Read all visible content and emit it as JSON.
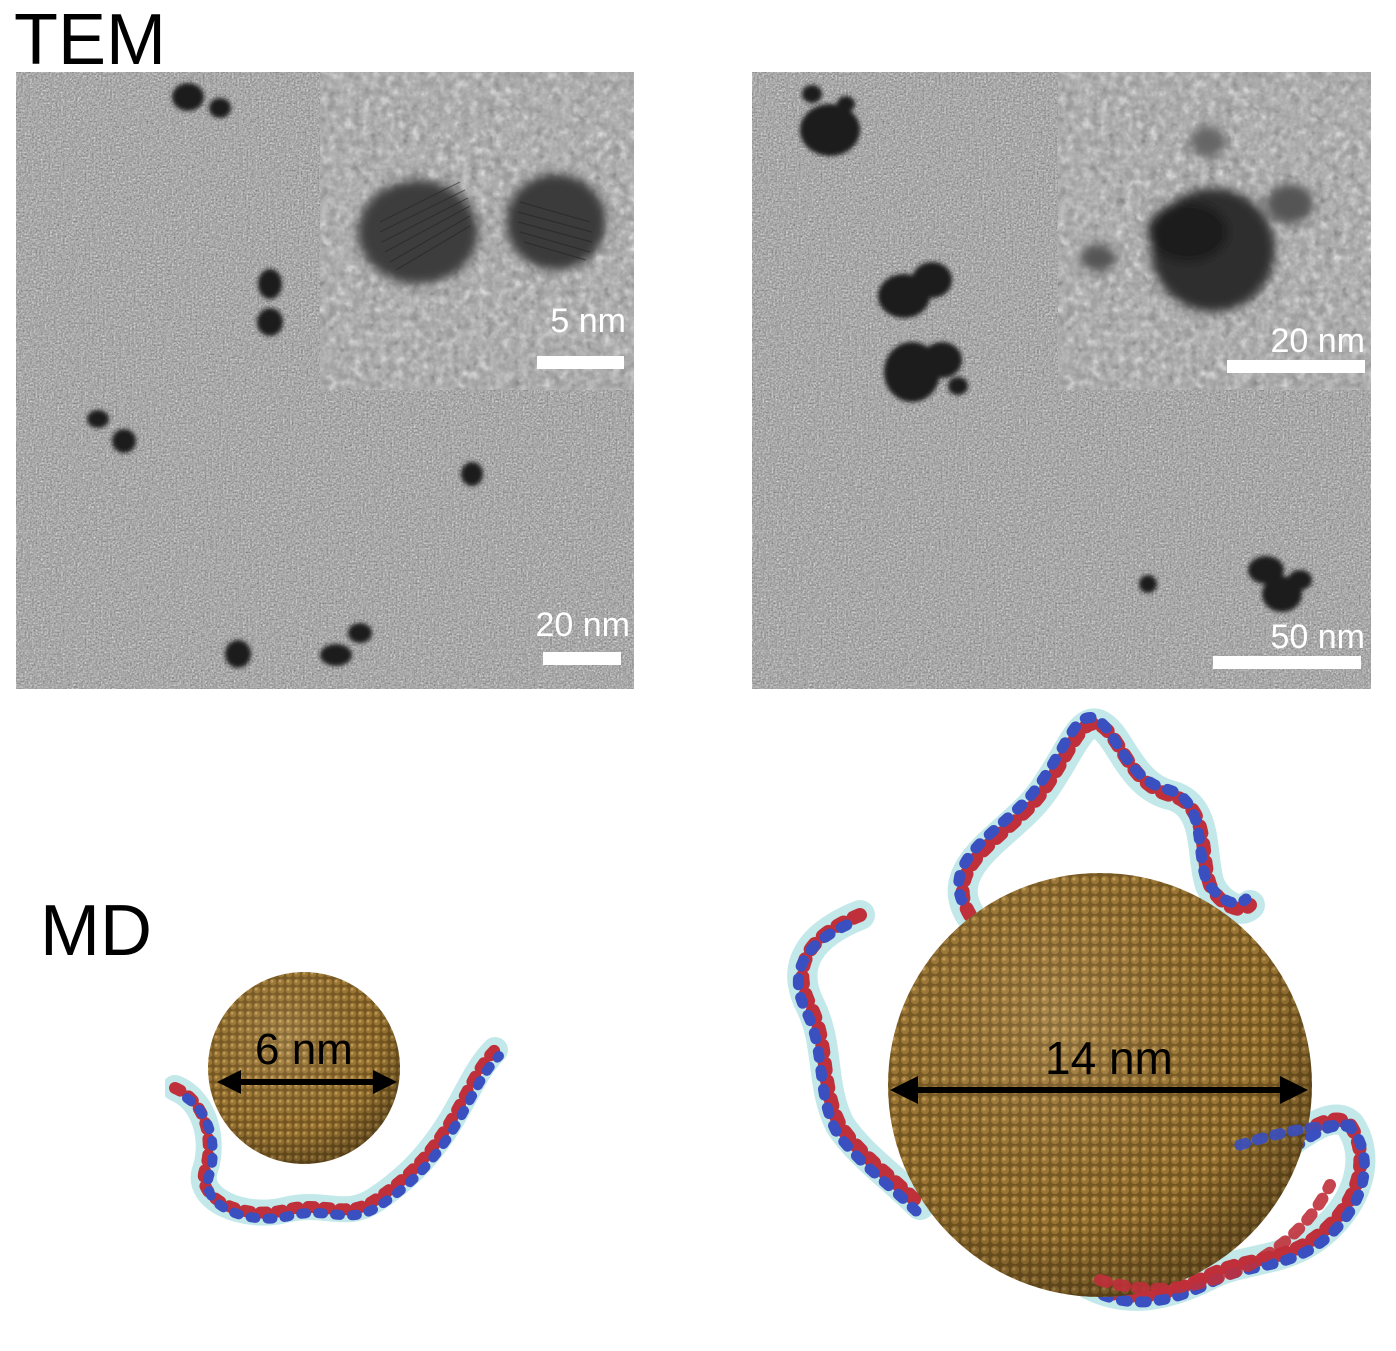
{
  "labels": {
    "tem": "TEM",
    "md": "MD"
  },
  "tem_panels": {
    "left": {
      "inset_scale": "5 nm",
      "main_scale": "20 nm"
    },
    "right": {
      "inset_scale": "20 nm",
      "main_scale": "50 nm"
    }
  },
  "md_models": {
    "small": {
      "diameter": "6 nm"
    },
    "large": {
      "diameter": "14 nm"
    }
  },
  "colors": {
    "gold_particle": "#8a6a2c",
    "dna_red": "#c0303a",
    "dna_blue": "#3a4fc0",
    "dna_cyan": "#8fd6d8",
    "tem_background": "#8e8e8e"
  }
}
